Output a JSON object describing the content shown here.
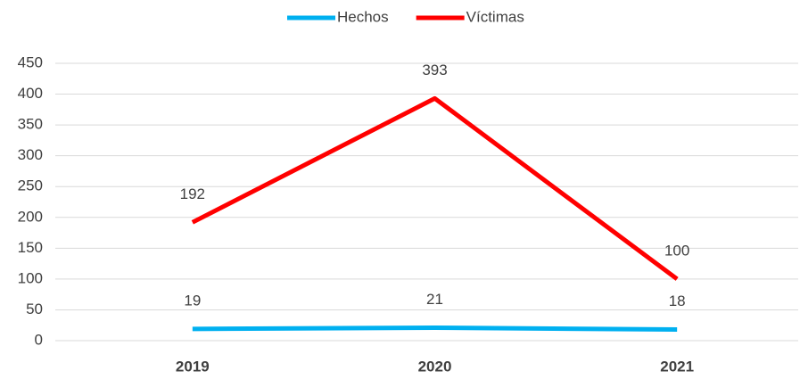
{
  "chart_data": {
    "type": "line",
    "categories": [
      "2019",
      "2020",
      "2021"
    ],
    "series": [
      {
        "name": "Hechos",
        "color": "#00b0f0",
        "values": [
          19,
          21,
          18
        ]
      },
      {
        "name": "Víctimas",
        "color": "#ff0000",
        "values": [
          192,
          393,
          100
        ]
      }
    ],
    "ylim": [
      0,
      450
    ],
    "yticks": [
      0,
      50,
      100,
      150,
      200,
      250,
      300,
      350,
      400,
      450
    ],
    "grid": true,
    "legend": "top"
  }
}
